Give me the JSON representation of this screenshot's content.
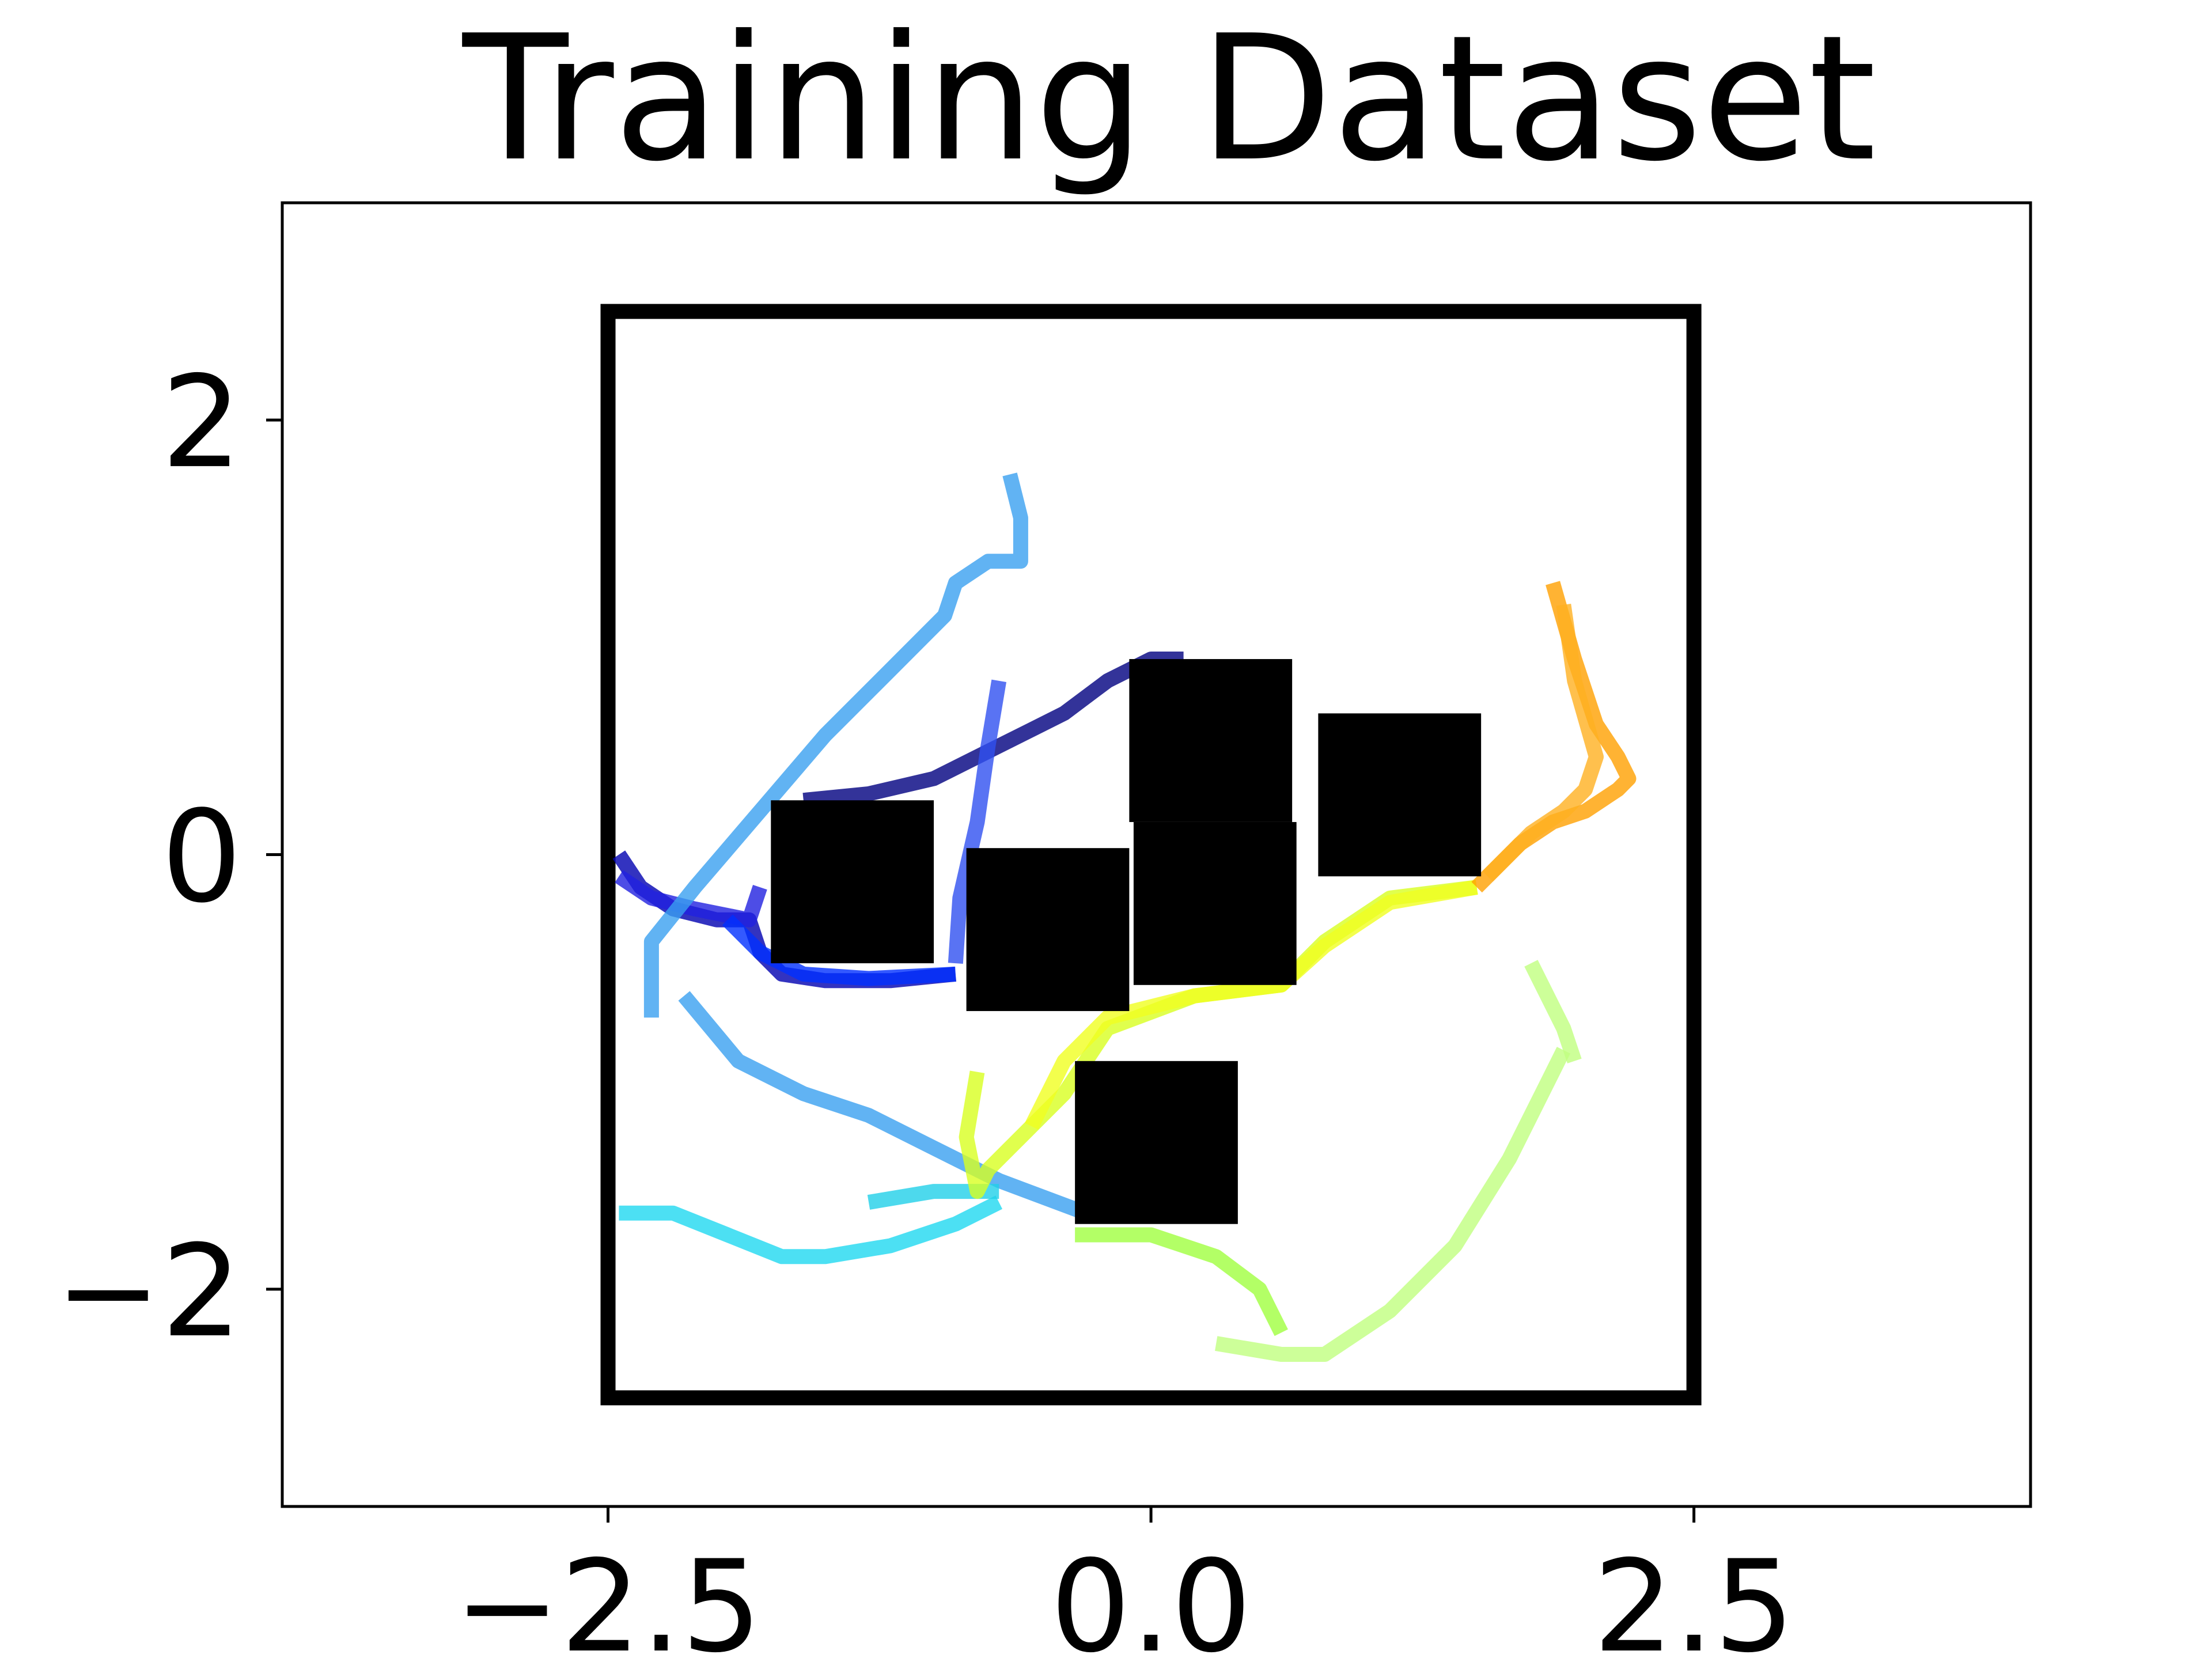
{
  "chart_data": {
    "type": "line",
    "title": "Training Dataset",
    "xlabel": "",
    "ylabel": "",
    "xlim": [
      -4.0,
      4.05
    ],
    "ylim": [
      -3.0,
      3.0
    ],
    "xticks": [
      -2.5,
      0.0,
      2.5
    ],
    "xtick_labels": [
      "−2.5",
      "0.0",
      "2.5"
    ],
    "yticks": [
      -2,
      0,
      2
    ],
    "ytick_labels": [
      "−2",
      "0",
      "2"
    ],
    "grid": false,
    "legend": "none",
    "boundary": {
      "x": [
        -2.5,
        2.5
      ],
      "y": [
        -2.5,
        2.5
      ],
      "color": "#000000"
    },
    "obstacles": [
      {
        "x": [
          -1.75,
          -1.0
        ],
        "y": [
          -0.5,
          0.25
        ],
        "color": "#000000"
      },
      {
        "x": [
          -0.85,
          -0.1
        ],
        "y": [
          -0.72,
          0.03
        ],
        "color": "#000000"
      },
      {
        "x": [
          -0.1,
          0.65
        ],
        "y": [
          0.15,
          0.9
        ],
        "color": "#000000"
      },
      {
        "x": [
          -0.08,
          0.67
        ],
        "y": [
          -0.6,
          0.15
        ],
        "color": "#000000"
      },
      {
        "x": [
          0.77,
          1.52
        ],
        "y": [
          -0.1,
          0.65
        ],
        "color": "#000000"
      },
      {
        "x": [
          -0.35,
          0.4
        ],
        "y": [
          -1.7,
          -0.95
        ],
        "color": "#000000"
      }
    ],
    "series": [
      {
        "color": "#000080",
        "x": [
          -1.6,
          -1.3,
          -1.0,
          -0.7,
          -0.4,
          -0.2,
          0.0,
          0.15
        ],
        "y": [
          0.25,
          0.28,
          0.35,
          0.5,
          0.65,
          0.8,
          0.9,
          0.9
        ]
      },
      {
        "color": "#0000b0",
        "x": [
          -2.45,
          -2.35,
          -2.2,
          -2.0,
          -1.85,
          -1.8,
          -1.7,
          -1.5,
          -1.2,
          -0.9
        ],
        "y": [
          0.0,
          -0.15,
          -0.25,
          -0.3,
          -0.3,
          -0.45,
          -0.55,
          -0.58,
          -0.58,
          -0.55
        ]
      },
      {
        "color": "#2020e0",
        "x": [
          -2.45,
          -2.3,
          -2.1,
          -1.95,
          -1.85,
          -1.8
        ],
        "y": [
          -0.1,
          -0.2,
          -0.25,
          -0.28,
          -0.3,
          -0.15
        ]
      },
      {
        "color": "#0030ff",
        "x": [
          -1.95,
          -1.8,
          -1.6,
          -1.3,
          -0.9
        ],
        "y": [
          -0.3,
          -0.45,
          -0.55,
          -0.57,
          -0.55
        ]
      },
      {
        "color": "#3050f0",
        "x": [
          -0.9,
          -0.88,
          -0.8,
          -0.75,
          -0.7
        ],
        "y": [
          -0.5,
          -0.2,
          0.15,
          0.5,
          0.8
        ]
      },
      {
        "color": "#3aa0f0",
        "x": [
          -2.3,
          -2.3,
          -2.1,
          -1.8,
          -1.5,
          -1.2,
          -0.95,
          -0.9,
          -0.75,
          -0.6,
          -0.6,
          -0.65
        ],
        "y": [
          -0.75,
          -0.4,
          -0.15,
          0.2,
          0.55,
          0.85,
          1.1,
          1.25,
          1.35,
          1.35,
          1.55,
          1.75
        ]
      },
      {
        "color": "#3aa0f0",
        "x": [
          -2.15,
          -1.9,
          -1.6,
          -1.3,
          -1.0,
          -0.7,
          -0.3
        ],
        "y": [
          -0.65,
          -0.95,
          -1.1,
          -1.2,
          -1.35,
          -1.5,
          -1.65
        ]
      },
      {
        "color": "#1fd8f0",
        "x": [
          -2.45,
          -2.2,
          -1.95,
          -1.7,
          -1.5,
          -1.2,
          -0.9,
          -0.7
        ],
        "y": [
          -1.65,
          -1.65,
          -1.75,
          -1.85,
          -1.85,
          -1.8,
          -1.7,
          -1.6
        ]
      },
      {
        "color": "#20d0e8",
        "x": [
          -1.3,
          -1.0,
          -0.8,
          -0.7
        ],
        "y": [
          -1.6,
          -1.55,
          -1.55,
          -1.55
        ]
      },
      {
        "color": "#d8ff20",
        "x": [
          -0.8,
          -0.85,
          -0.8,
          -0.75,
          -0.65,
          -0.4,
          -0.2,
          0.2,
          0.6,
          0.8,
          1.1,
          1.5
        ],
        "y": [
          -1.0,
          -1.3,
          -1.55,
          -1.45,
          -1.35,
          -1.1,
          -0.8,
          -0.65,
          -0.6,
          -0.4,
          -0.2,
          -0.15
        ]
      },
      {
        "color": "#f0ff20",
        "x": [
          -0.55,
          -0.4,
          -0.2,
          0.2,
          0.6,
          0.8,
          1.1,
          1.5
        ],
        "y": [
          -1.25,
          -0.95,
          -0.75,
          -0.65,
          -0.6,
          -0.42,
          -0.22,
          -0.15
        ]
      },
      {
        "color": "#a0ff40",
        "x": [
          -0.35,
          0.0,
          0.3,
          0.5,
          0.6
        ],
        "y": [
          -1.75,
          -1.75,
          -1.85,
          -2.0,
          -2.2
        ]
      },
      {
        "color": "#c0ff80",
        "x": [
          0.3,
          0.6,
          0.8,
          1.1,
          1.4,
          1.65,
          1.85,
          1.9
        ],
        "y": [
          -2.25,
          -2.3,
          -2.3,
          -2.1,
          -1.8,
          -1.4,
          -1.0,
          -0.9
        ]
      },
      {
        "color": "#c0ff80",
        "x": [
          1.75,
          1.9,
          1.95
        ],
        "y": [
          -0.5,
          -0.8,
          -0.95
        ]
      },
      {
        "color": "#ffa000",
        "x": [
          1.5,
          1.7,
          1.85,
          2.0,
          2.15,
          2.2,
          2.15,
          2.05,
          1.95,
          1.85
        ],
        "y": [
          -0.15,
          0.05,
          0.15,
          0.2,
          0.3,
          0.35,
          0.45,
          0.6,
          0.9,
          1.25
        ]
      },
      {
        "color": "#ffb020",
        "x": [
          1.55,
          1.75,
          1.9,
          2.0,
          2.05,
          1.95,
          1.9
        ],
        "y": [
          -0.1,
          0.1,
          0.2,
          0.3,
          0.45,
          0.8,
          1.15
        ]
      }
    ]
  }
}
